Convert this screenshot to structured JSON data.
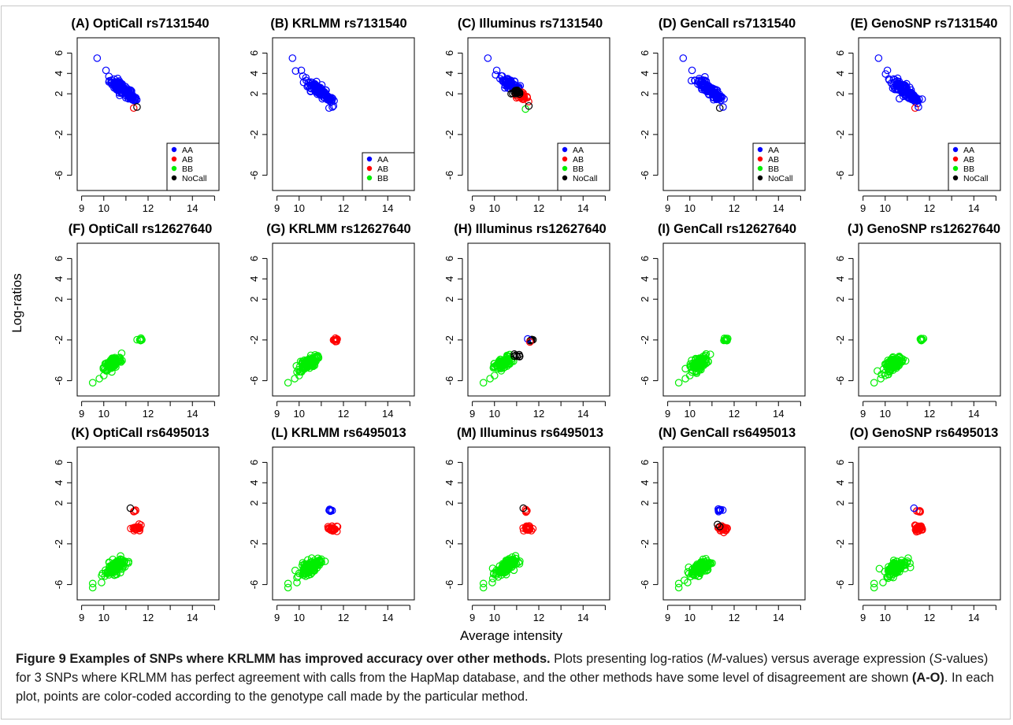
{
  "figure": {
    "ylabel": "Log-ratios",
    "xlabel": "Average intensity",
    "x_ticks": [
      "9",
      "10",
      "12",
      "14"
    ],
    "y_ticks": [
      "6",
      "4",
      "2",
      "-2",
      "-6"
    ]
  },
  "colors": {
    "AA": "#0000ff",
    "AB": "#ff0000",
    "BB": "#00ee00",
    "NoCall": "#000000"
  },
  "caption": {
    "label": "Figure 9",
    "title": "Examples of SNPs where KRLMM has improved accuracy over other methods.",
    "t1": " Plots presenting log-ratios (",
    "m": "M",
    "t2": "-values) versus average expression (",
    "s": "S",
    "t3": "-values) for 3 SNPs where KRLMM has perfect agreement with calls from the HapMap database, and the other methods have some level of disagreement are shown ",
    "range": "(A-O)",
    "t4": ". In each plot, points are color-coded according to the genotype call made by the particular method."
  },
  "chart_data": [
    {
      "type": "scatter",
      "title": "(A) OptiCall rs7131540",
      "xlim": [
        8.8,
        15.2
      ],
      "ylim": [
        -7.5,
        7.5
      ],
      "legend": "bottom-right",
      "legend_entries": [
        "AA",
        "AB",
        "BB",
        "NoCall"
      ],
      "clusters": [
        {
          "call": "AA",
          "cx": 10.8,
          "cy": 2.5,
          "rx": 0.55,
          "ry": 1.0,
          "n": 90,
          "corr": -0.8
        },
        {
          "call": "AA",
          "cx": 11.3,
          "cy": 1.6,
          "rx": 0.2,
          "ry": 0.35,
          "n": 25,
          "corr": -0.5
        }
      ],
      "points": [
        {
          "x": 9.7,
          "y": 5.5,
          "call": "AA"
        },
        {
          "x": 10.1,
          "y": 4.3,
          "call": "AA"
        },
        {
          "x": 11.35,
          "y": 0.6,
          "call": "AB"
        },
        {
          "x": 11.5,
          "y": 0.7,
          "call": "NoCall"
        }
      ]
    },
    {
      "type": "scatter",
      "title": "(B) KRLMM rs7131540",
      "xlim": [
        8.8,
        15.2
      ],
      "ylim": [
        -7.5,
        7.5
      ],
      "legend": "bottom-right",
      "legend_entries": [
        "AA",
        "AB",
        "BB"
      ],
      "clusters": [
        {
          "call": "AA",
          "cx": 10.8,
          "cy": 2.5,
          "rx": 0.55,
          "ry": 1.0,
          "n": 90,
          "corr": -0.8
        },
        {
          "call": "AA",
          "cx": 11.3,
          "cy": 1.6,
          "rx": 0.2,
          "ry": 0.35,
          "n": 25,
          "corr": -0.5
        }
      ],
      "points": [
        {
          "x": 9.7,
          "y": 5.5,
          "call": "AA"
        },
        {
          "x": 10.1,
          "y": 4.3,
          "call": "AA"
        },
        {
          "x": 11.35,
          "y": 0.6,
          "call": "AA"
        },
        {
          "x": 11.5,
          "y": 0.7,
          "call": "AA"
        }
      ]
    },
    {
      "type": "scatter",
      "title": "(C) Illuminus rs7131540",
      "xlim": [
        8.8,
        15.2
      ],
      "ylim": [
        -7.5,
        7.5
      ],
      "legend": "bottom-right",
      "legend_entries": [
        "AA",
        "AB",
        "BB",
        "NoCall"
      ],
      "clusters": [
        {
          "call": "AA",
          "cx": 10.7,
          "cy": 3.0,
          "rx": 0.45,
          "ry": 0.7,
          "n": 60,
          "corr": -0.8
        },
        {
          "call": "AB",
          "cx": 11.2,
          "cy": 1.8,
          "rx": 0.3,
          "ry": 0.35,
          "n": 30,
          "corr": -0.4
        },
        {
          "call": "NoCall",
          "cx": 11.0,
          "cy": 2.1,
          "rx": 0.25,
          "ry": 0.3,
          "n": 18,
          "corr": -0.5
        }
      ],
      "points": [
        {
          "x": 9.7,
          "y": 5.5,
          "call": "AA"
        },
        {
          "x": 10.1,
          "y": 4.3,
          "call": "AA"
        },
        {
          "x": 11.4,
          "y": 0.5,
          "call": "BB"
        },
        {
          "x": 11.55,
          "y": 0.8,
          "call": "NoCall"
        }
      ]
    },
    {
      "type": "scatter",
      "title": "(D) GenCall rs7131540",
      "xlim": [
        8.8,
        15.2
      ],
      "ylim": [
        -7.5,
        7.5
      ],
      "legend": "bottom-right",
      "legend_entries": [
        "AA",
        "AB",
        "BB",
        "NoCall"
      ],
      "clusters": [
        {
          "call": "AA",
          "cx": 10.8,
          "cy": 2.5,
          "rx": 0.55,
          "ry": 1.0,
          "n": 90,
          "corr": -0.8
        },
        {
          "call": "AA",
          "cx": 11.3,
          "cy": 1.6,
          "rx": 0.2,
          "ry": 0.35,
          "n": 25,
          "corr": -0.5
        }
      ],
      "points": [
        {
          "x": 9.7,
          "y": 5.5,
          "call": "AA"
        },
        {
          "x": 10.1,
          "y": 4.3,
          "call": "AA"
        },
        {
          "x": 11.35,
          "y": 0.6,
          "call": "NoCall"
        },
        {
          "x": 11.5,
          "y": 0.7,
          "call": "AA"
        }
      ]
    },
    {
      "type": "scatter",
      "title": "(E) GenoSNP rs7131540",
      "xlim": [
        8.8,
        15.2
      ],
      "ylim": [
        -7.5,
        7.5
      ],
      "legend": "bottom-right",
      "legend_entries": [
        "AA",
        "AB",
        "BB",
        "NoCall"
      ],
      "clusters": [
        {
          "call": "AA",
          "cx": 10.8,
          "cy": 2.5,
          "rx": 0.55,
          "ry": 1.0,
          "n": 90,
          "corr": -0.8
        },
        {
          "call": "AA",
          "cx": 11.3,
          "cy": 1.6,
          "rx": 0.2,
          "ry": 0.35,
          "n": 25,
          "corr": -0.5
        }
      ],
      "points": [
        {
          "x": 9.7,
          "y": 5.5,
          "call": "AA"
        },
        {
          "x": 10.1,
          "y": 4.3,
          "call": "AA"
        },
        {
          "x": 11.35,
          "y": 0.6,
          "call": "AB"
        },
        {
          "x": 11.5,
          "y": 0.7,
          "call": "AA"
        }
      ]
    },
    {
      "type": "scatter",
      "title": "(F) OptiCall rs12627640",
      "xlim": [
        8.8,
        15.2
      ],
      "ylim": [
        -7.5,
        7.5
      ],
      "clusters": [
        {
          "call": "BB",
          "cx": 10.4,
          "cy": -4.3,
          "rx": 0.4,
          "ry": 0.7,
          "n": 110,
          "corr": 0.6
        },
        {
          "call": "BB",
          "cx": 11.65,
          "cy": -2.0,
          "rx": 0.1,
          "ry": 0.2,
          "n": 10,
          "corr": 0.0
        }
      ],
      "points": [
        {
          "x": 9.5,
          "y": -6.2,
          "call": "BB"
        },
        {
          "x": 9.8,
          "y": -5.8,
          "call": "BB"
        },
        {
          "x": 10.0,
          "y": -5.5,
          "call": "BB"
        }
      ]
    },
    {
      "type": "scatter",
      "title": "(G) KRLMM rs12627640",
      "xlim": [
        8.8,
        15.2
      ],
      "ylim": [
        -7.5,
        7.5
      ],
      "clusters": [
        {
          "call": "BB",
          "cx": 10.4,
          "cy": -4.3,
          "rx": 0.4,
          "ry": 0.7,
          "n": 110,
          "corr": 0.6
        },
        {
          "call": "AB",
          "cx": 11.65,
          "cy": -2.0,
          "rx": 0.1,
          "ry": 0.2,
          "n": 10,
          "corr": 0.0
        }
      ],
      "points": [
        {
          "x": 9.5,
          "y": -6.2,
          "call": "BB"
        },
        {
          "x": 9.8,
          "y": -5.8,
          "call": "BB"
        },
        {
          "x": 10.0,
          "y": -5.5,
          "call": "BB"
        }
      ]
    },
    {
      "type": "scatter",
      "title": "(H) Illuminus rs12627640",
      "xlim": [
        8.8,
        15.2
      ],
      "ylim": [
        -7.5,
        7.5
      ],
      "clusters": [
        {
          "call": "BB",
          "cx": 10.4,
          "cy": -4.3,
          "rx": 0.4,
          "ry": 0.7,
          "n": 100,
          "corr": 0.6
        },
        {
          "call": "NoCall",
          "cx": 11.0,
          "cy": -3.5,
          "rx": 0.2,
          "ry": 0.2,
          "n": 7,
          "corr": 0.0
        },
        {
          "call": "NoCall",
          "cx": 11.7,
          "cy": -2.0,
          "rx": 0.08,
          "ry": 0.12,
          "n": 5,
          "corr": 0.0
        }
      ],
      "points": [
        {
          "x": 9.5,
          "y": -6.2,
          "call": "BB"
        },
        {
          "x": 9.8,
          "y": -5.8,
          "call": "BB"
        },
        {
          "x": 10.0,
          "y": -5.5,
          "call": "BB"
        },
        {
          "x": 11.5,
          "y": -1.9,
          "call": "AA"
        },
        {
          "x": 11.6,
          "y": -2.2,
          "call": "AB"
        }
      ]
    },
    {
      "type": "scatter",
      "title": "(I) GenCall rs12627640",
      "xlim": [
        8.8,
        15.2
      ],
      "ylim": [
        -7.5,
        7.5
      ],
      "clusters": [
        {
          "call": "BB",
          "cx": 10.4,
          "cy": -4.3,
          "rx": 0.4,
          "ry": 0.7,
          "n": 110,
          "corr": 0.6
        },
        {
          "call": "BB",
          "cx": 11.65,
          "cy": -2.0,
          "rx": 0.1,
          "ry": 0.2,
          "n": 10,
          "corr": 0.0
        }
      ],
      "points": [
        {
          "x": 9.5,
          "y": -6.2,
          "call": "BB"
        },
        {
          "x": 9.8,
          "y": -5.8,
          "call": "BB"
        },
        {
          "x": 10.0,
          "y": -5.5,
          "call": "BB"
        }
      ]
    },
    {
      "type": "scatter",
      "title": "(J) GenoSNP rs12627640",
      "xlim": [
        8.8,
        15.2
      ],
      "ylim": [
        -7.5,
        7.5
      ],
      "clusters": [
        {
          "call": "BB",
          "cx": 10.4,
          "cy": -4.3,
          "rx": 0.4,
          "ry": 0.7,
          "n": 110,
          "corr": 0.6
        },
        {
          "call": "BB",
          "cx": 11.65,
          "cy": -2.0,
          "rx": 0.1,
          "ry": 0.2,
          "n": 10,
          "corr": 0.0
        }
      ],
      "points": [
        {
          "x": 9.5,
          "y": -6.2,
          "call": "BB"
        },
        {
          "x": 9.8,
          "y": -5.8,
          "call": "BB"
        },
        {
          "x": 10.0,
          "y": -5.5,
          "call": "BB"
        }
      ]
    },
    {
      "type": "scatter",
      "title": "(K) OptiCall rs6495013",
      "xlim": [
        8.8,
        15.2
      ],
      "ylim": [
        -7.5,
        7.5
      ],
      "clusters": [
        {
          "call": "BB",
          "cx": 10.5,
          "cy": -4.3,
          "rx": 0.45,
          "ry": 0.8,
          "n": 120,
          "corr": 0.6
        },
        {
          "call": "AB",
          "cx": 11.5,
          "cy": -0.5,
          "rx": 0.22,
          "ry": 0.3,
          "n": 25,
          "corr": 0.0
        },
        {
          "call": "AB",
          "cx": 11.35,
          "cy": 1.2,
          "rx": 0.1,
          "ry": 0.12,
          "n": 6,
          "corr": 0.0
        }
      ],
      "points": [
        {
          "x": 9.5,
          "y": -5.9,
          "call": "BB"
        },
        {
          "x": 9.5,
          "y": -6.3,
          "call": "BB"
        },
        {
          "x": 9.9,
          "y": -5.8,
          "call": "BB"
        },
        {
          "x": 11.2,
          "y": 1.5,
          "call": "NoCall"
        }
      ]
    },
    {
      "type": "scatter",
      "title": "(L) KRLMM rs6495013",
      "xlim": [
        8.8,
        15.2
      ],
      "ylim": [
        -7.5,
        7.5
      ],
      "clusters": [
        {
          "call": "BB",
          "cx": 10.5,
          "cy": -4.3,
          "rx": 0.45,
          "ry": 0.8,
          "n": 120,
          "corr": 0.6
        },
        {
          "call": "AB",
          "cx": 11.5,
          "cy": -0.5,
          "rx": 0.22,
          "ry": 0.3,
          "n": 25,
          "corr": 0.0
        },
        {
          "call": "AA",
          "cx": 11.4,
          "cy": 1.3,
          "rx": 0.12,
          "ry": 0.12,
          "n": 8,
          "corr": 0.0
        }
      ],
      "points": [
        {
          "x": 9.5,
          "y": -5.9,
          "call": "BB"
        },
        {
          "x": 9.5,
          "y": -6.3,
          "call": "BB"
        },
        {
          "x": 9.9,
          "y": -5.8,
          "call": "BB"
        }
      ]
    },
    {
      "type": "scatter",
      "title": "(M) Illuminus rs6495013",
      "xlim": [
        8.8,
        15.2
      ],
      "ylim": [
        -7.5,
        7.5
      ],
      "clusters": [
        {
          "call": "BB",
          "cx": 10.5,
          "cy": -4.3,
          "rx": 0.45,
          "ry": 0.8,
          "n": 120,
          "corr": 0.6
        },
        {
          "call": "AB",
          "cx": 11.5,
          "cy": -0.5,
          "rx": 0.22,
          "ry": 0.3,
          "n": 25,
          "corr": 0.0
        },
        {
          "call": "AB",
          "cx": 11.45,
          "cy": 1.25,
          "rx": 0.1,
          "ry": 0.12,
          "n": 6,
          "corr": 0.0
        }
      ],
      "points": [
        {
          "x": 9.5,
          "y": -5.9,
          "call": "BB"
        },
        {
          "x": 9.5,
          "y": -6.3,
          "call": "BB"
        },
        {
          "x": 9.9,
          "y": -5.8,
          "call": "BB"
        },
        {
          "x": 11.3,
          "y": 1.5,
          "call": "NoCall"
        }
      ]
    },
    {
      "type": "scatter",
      "title": "(N) GenCall rs6495013",
      "xlim": [
        8.8,
        15.2
      ],
      "ylim": [
        -7.5,
        7.5
      ],
      "clusters": [
        {
          "call": "BB",
          "cx": 10.5,
          "cy": -4.3,
          "rx": 0.45,
          "ry": 0.8,
          "n": 120,
          "corr": 0.6
        },
        {
          "call": "AB",
          "cx": 11.5,
          "cy": -0.5,
          "rx": 0.22,
          "ry": 0.3,
          "n": 22,
          "corr": 0.0
        },
        {
          "call": "AA",
          "cx": 11.4,
          "cy": 1.3,
          "rx": 0.12,
          "ry": 0.12,
          "n": 8,
          "corr": 0.0
        }
      ],
      "points": [
        {
          "x": 9.5,
          "y": -5.9,
          "call": "BB"
        },
        {
          "x": 9.5,
          "y": -6.3,
          "call": "BB"
        },
        {
          "x": 9.9,
          "y": -5.8,
          "call": "BB"
        },
        {
          "x": 11.25,
          "y": -0.1,
          "call": "NoCall"
        },
        {
          "x": 11.35,
          "y": -0.3,
          "call": "NoCall"
        }
      ]
    },
    {
      "type": "scatter",
      "title": "(O) GenoSNP rs6495013",
      "xlim": [
        8.8,
        15.2
      ],
      "ylim": [
        -7.5,
        7.5
      ],
      "clusters": [
        {
          "call": "BB",
          "cx": 10.5,
          "cy": -4.3,
          "rx": 0.45,
          "ry": 0.8,
          "n": 120,
          "corr": 0.6
        },
        {
          "call": "AB",
          "cx": 11.5,
          "cy": -0.5,
          "rx": 0.22,
          "ry": 0.3,
          "n": 25,
          "corr": 0.0
        },
        {
          "call": "AB",
          "cx": 11.5,
          "cy": 1.2,
          "rx": 0.1,
          "ry": 0.12,
          "n": 6,
          "corr": 0.0
        }
      ],
      "points": [
        {
          "x": 9.5,
          "y": -5.9,
          "call": "BB"
        },
        {
          "x": 9.5,
          "y": -6.3,
          "call": "BB"
        },
        {
          "x": 9.9,
          "y": -5.8,
          "call": "BB"
        },
        {
          "x": 11.3,
          "y": 1.5,
          "call": "AA"
        }
      ]
    }
  ]
}
